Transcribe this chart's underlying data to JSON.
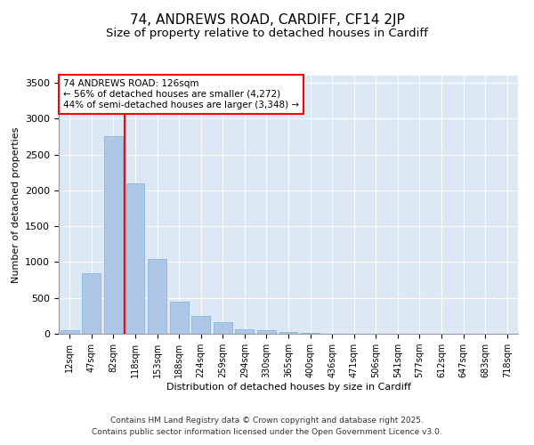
{
  "title1": "74, ANDREWS ROAD, CARDIFF, CF14 2JP",
  "title2": "Size of property relative to detached houses in Cardiff",
  "xlabel": "Distribution of detached houses by size in Cardiff",
  "ylabel": "Number of detached properties",
  "categories": [
    "12sqm",
    "47sqm",
    "82sqm",
    "118sqm",
    "153sqm",
    "188sqm",
    "224sqm",
    "259sqm",
    "294sqm",
    "330sqm",
    "365sqm",
    "400sqm",
    "436sqm",
    "471sqm",
    "506sqm",
    "541sqm",
    "577sqm",
    "612sqm",
    "647sqm",
    "683sqm",
    "718sqm"
  ],
  "values": [
    55,
    850,
    2760,
    2100,
    1040,
    450,
    245,
    160,
    65,
    50,
    30,
    15,
    5,
    2,
    1,
    0,
    0,
    0,
    0,
    0,
    0
  ],
  "bar_color": "#aec6e8",
  "bar_edge_color": "#7fafd4",
  "bg_color": "#dce9f5",
  "grid_color": "#ffffff",
  "vline_color": "red",
  "vline_pos": 2.5,
  "annotation_title": "74 ANDREWS ROAD: 126sqm",
  "annotation_line1": "← 56% of detached houses are smaller (4,272)",
  "annotation_line2": "44% of semi-detached houses are larger (3,348) →",
  "annotation_box_color": "white",
  "annotation_box_edge": "red",
  "ylim": [
    0,
    3600
  ],
  "yticks": [
    0,
    500,
    1000,
    1500,
    2000,
    2500,
    3000,
    3500
  ],
  "footer1": "Contains HM Land Registry data © Crown copyright and database right 2025.",
  "footer2": "Contains public sector information licensed under the Open Government Licence v3.0.",
  "title_fontsize": 11,
  "subtitle_fontsize": 9.5,
  "label_fontsize": 8,
  "tick_fontsize": 7,
  "annot_fontsize": 7.5,
  "footer_fontsize": 6.5
}
